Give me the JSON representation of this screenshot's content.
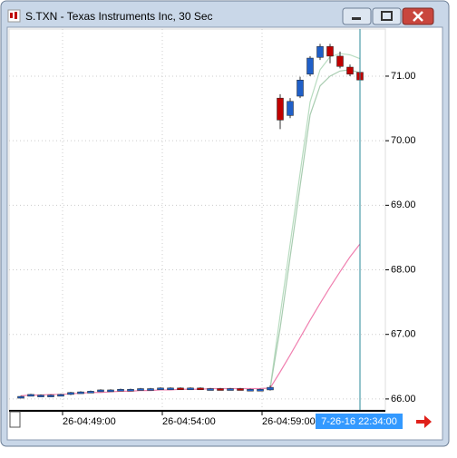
{
  "chart_data": {
    "type": "candlestick",
    "title": "S.TXN - Texas Instruments Inc, 30 Sec",
    "categories": [
      null,
      null,
      null,
      null,
      "26-04:49:00",
      null,
      null,
      null,
      null,
      null,
      null,
      null,
      null,
      null,
      "26-04:54:00",
      null,
      null,
      null,
      null,
      null,
      null,
      null,
      null,
      null,
      "26-04:59:00",
      null,
      null,
      null,
      null,
      null,
      null,
      null,
      null,
      null,
      null
    ],
    "open": [
      66.04,
      66.05,
      66.06,
      66.06,
      66.06,
      66.07,
      66.1,
      66.11,
      66.12,
      66.14,
      66.14,
      66.15,
      66.15,
      66.16,
      66.16,
      66.17,
      66.17,
      66.16,
      66.17,
      66.16,
      66.16,
      66.15,
      66.16,
      66.15,
      66.14,
      66.14,
      70.66,
      70.39,
      70.69,
      71.03,
      71.29,
      71.46,
      71.31,
      71.14,
      71.06
    ],
    "high": [
      66.05,
      66.08,
      66.07,
      66.07,
      66.08,
      66.11,
      66.12,
      66.13,
      66.15,
      66.15,
      66.16,
      66.16,
      66.17,
      66.17,
      66.18,
      66.18,
      66.18,
      66.18,
      66.18,
      66.17,
      66.17,
      66.17,
      66.17,
      66.16,
      66.16,
      66.21,
      70.72,
      70.66,
      70.99,
      71.31,
      71.5,
      71.5,
      71.38,
      71.18,
      71.1
    ],
    "low": [
      66.03,
      66.05,
      66.05,
      66.05,
      66.05,
      66.06,
      66.09,
      66.1,
      66.11,
      66.13,
      66.13,
      66.14,
      66.14,
      66.15,
      66.15,
      66.16,
      66.16,
      66.15,
      66.16,
      66.15,
      66.15,
      66.14,
      66.15,
      66.14,
      66.13,
      66.13,
      70.18,
      70.35,
      70.66,
      71.0,
      71.25,
      71.2,
      71.12,
      71.0,
      70.93
    ],
    "close": [
      66.04,
      66.07,
      66.06,
      66.06,
      66.07,
      66.1,
      66.11,
      66.12,
      66.14,
      66.14,
      66.15,
      66.15,
      66.16,
      66.16,
      66.17,
      66.17,
      66.16,
      66.17,
      66.16,
      66.16,
      66.15,
      66.16,
      66.15,
      66.15,
      66.15,
      66.18,
      70.32,
      70.61,
      70.94,
      71.28,
      71.46,
      71.31,
      71.15,
      71.03,
      70.94
    ],
    "up_color": "#1f5fc8",
    "down_color": "#c00000",
    "lines": [
      {
        "color": "#b8dcc0",
        "values": [
          null,
          null,
          null,
          null,
          null,
          null,
          null,
          null,
          null,
          null,
          null,
          null,
          null,
          null,
          null,
          null,
          null,
          null,
          null,
          null,
          null,
          null,
          null,
          null,
          66.16,
          66.17,
          67.3,
          68.4,
          69.5,
          70.6,
          71.1,
          71.3,
          71.35,
          71.33,
          71.27
        ]
      },
      {
        "color": "#a8ccb0",
        "values": [
          null,
          null,
          null,
          null,
          null,
          null,
          null,
          null,
          null,
          null,
          null,
          null,
          null,
          null,
          null,
          null,
          null,
          null,
          null,
          null,
          null,
          null,
          null,
          null,
          66.16,
          66.17,
          67.1,
          68.2,
          69.3,
          70.4,
          70.85,
          71.0,
          71.08,
          71.1,
          71.05
        ]
      },
      {
        "color": "#f080b0",
        "values": [
          66.05,
          66.06,
          66.06,
          66.07,
          66.07,
          66.08,
          66.09,
          66.1,
          66.1,
          66.11,
          66.12,
          66.12,
          66.13,
          66.13,
          66.14,
          66.14,
          66.15,
          66.15,
          66.15,
          66.16,
          66.16,
          66.16,
          66.16,
          66.16,
          66.16,
          66.17,
          66.42,
          66.68,
          66.95,
          67.22,
          67.48,
          67.73,
          67.97,
          68.2,
          68.4
        ]
      }
    ],
    "ylim": [
      65.83,
      71.73
    ],
    "yticks": [
      {
        "value": 66,
        "label": "66.00"
      },
      {
        "value": 67,
        "label": "67.00"
      },
      {
        "value": 68,
        "label": "68.00"
      },
      {
        "value": 69,
        "label": "69.00"
      },
      {
        "value": 70,
        "label": "70.00"
      },
      {
        "value": 71,
        "label": "71.00"
      }
    ],
    "grid": true,
    "cursor_label": "7-26-16 22:34:00"
  }
}
